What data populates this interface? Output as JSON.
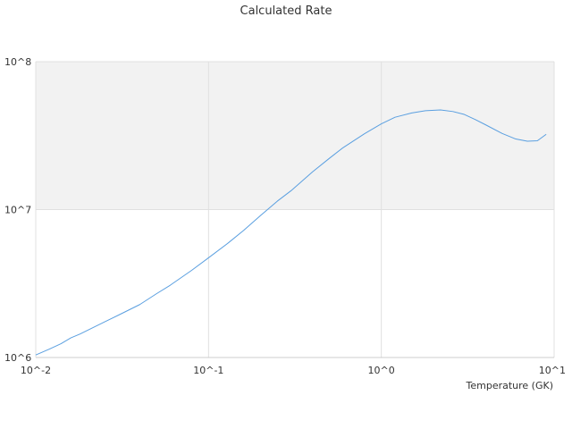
{
  "chart_data": {
    "type": "line",
    "title": "Calculated Rate",
    "xlabel": "Temperature (GK)",
    "ylabel": "",
    "x_scale": "log",
    "y_scale": "log",
    "xlim": [
      0.01,
      10
    ],
    "ylim": [
      1000000,
      100000000
    ],
    "x_ticks": [
      {
        "value": 0.01,
        "label": "10^-2"
      },
      {
        "value": 0.1,
        "label": "10^-1"
      },
      {
        "value": 1,
        "label": "10^0"
      },
      {
        "value": 10,
        "label": "10^1"
      }
    ],
    "y_ticks": [
      {
        "value": 1000000,
        "label": "10^6"
      },
      {
        "value": 10000000,
        "label": "10^7"
      },
      {
        "value": 100000000,
        "label": "10^8"
      }
    ],
    "shaded_band": {
      "from": 10000000,
      "to": 100000000
    },
    "grid": true,
    "legend": "none",
    "colors": {
      "series": "#5a9fe0",
      "band": "#f2f2f2",
      "grid": "#e0e0e0",
      "axis": "#cccccc",
      "text": "#333333"
    },
    "series": [
      {
        "x": [
          0.01,
          0.012,
          0.014,
          0.016,
          0.018,
          0.02,
          0.025,
          0.03,
          0.04,
          0.05,
          0.06,
          0.08,
          0.1,
          0.13,
          0.16,
          0.2,
          0.25,
          0.3,
          0.4,
          0.5,
          0.6,
          0.8,
          1.0,
          1.2,
          1.5,
          1.8,
          2.2,
          2.6,
          3.0,
          3.5,
          4.0,
          5.0,
          6.0,
          7.0,
          8.0,
          9.0
        ],
        "y": [
          1040000,
          1140000,
          1240000,
          1360000,
          1440000,
          1530000,
          1740000,
          1930000,
          2280000,
          2700000,
          3080000,
          3890000,
          4720000,
          5950000,
          7250000,
          9120000,
          11400000,
          13400000,
          18000000,
          22200000,
          26200000,
          32600000,
          38000000,
          42100000,
          45000000,
          46600000,
          47200000,
          46000000,
          44100000,
          40600000,
          37500000,
          32700000,
          30000000,
          29000000,
          29200000,
          32300000
        ]
      }
    ]
  }
}
